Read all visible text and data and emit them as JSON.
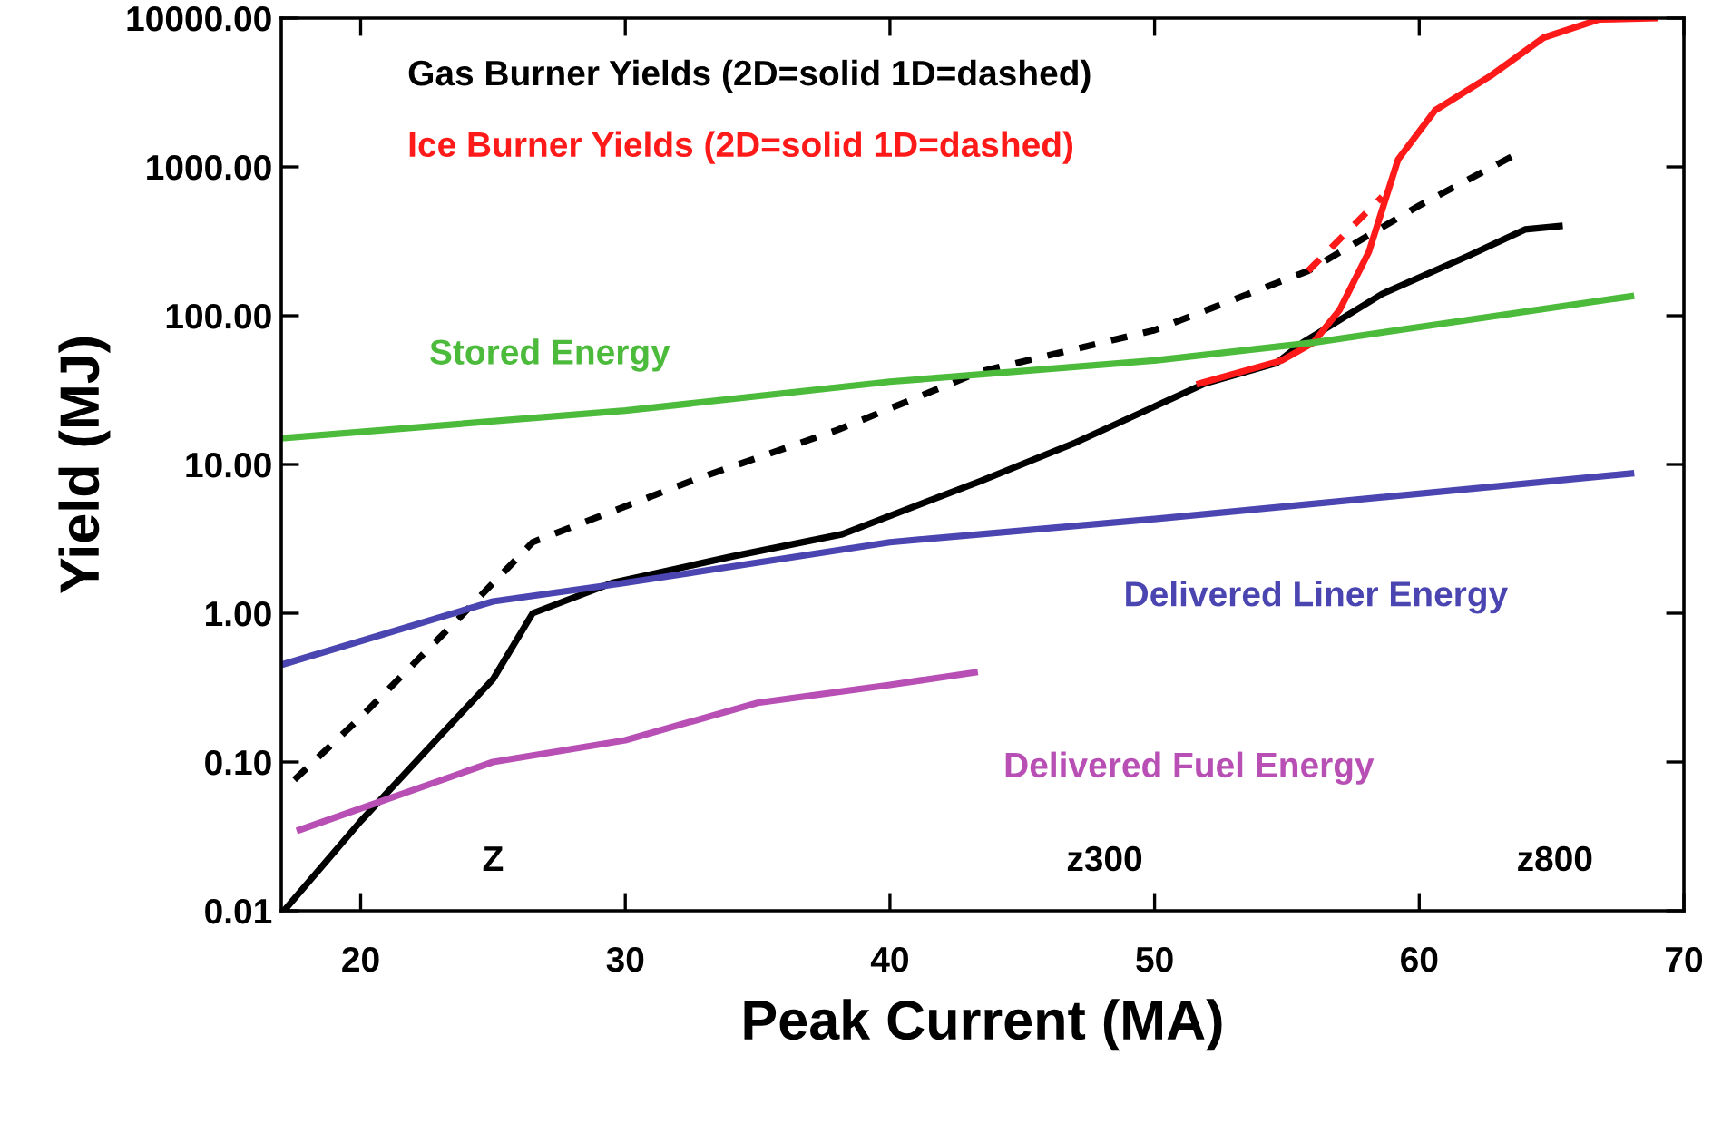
{
  "chart_data": {
    "type": "line",
    "xlabel": "Peak Current (MA)",
    "ylabel": "Yield (MJ)",
    "log": "y",
    "grid": false,
    "legend": false,
    "xlim": [
      17,
      70
    ],
    "xticks": [
      20,
      30,
      40,
      50,
      60,
      70
    ],
    "ylim": [
      0.01,
      10000
    ],
    "yticks": [
      {
        "value": 0.01,
        "label": "0.01"
      },
      {
        "value": 0.1,
        "label": "0.10"
      },
      {
        "value": 1,
        "label": "1.00"
      },
      {
        "value": 10,
        "label": "10.00"
      },
      {
        "value": 100,
        "label": "100.00"
      },
      {
        "value": 1000,
        "label": "1000.00"
      },
      {
        "value": 10000,
        "label": "10000.00"
      }
    ],
    "series": [
      {
        "color": "#000000",
        "line_style": "solid",
        "x": [
          17.1,
          20,
          23,
          25,
          26.5,
          29.5,
          34,
          38.2,
          43.4,
          47,
          51.9,
          54.6,
          55.6,
          58.6,
          61.8,
          64,
          65.3
        ],
        "values": [
          0.01,
          0.04,
          0.15,
          0.36,
          1.0,
          1.6,
          2.4,
          3.4,
          7.7,
          14,
          35,
          48,
          66,
          140,
          250,
          380,
          400
        ]
      },
      {
        "color": "#000000",
        "line_style": "dashed",
        "x": [
          17.5,
          20,
          23.7,
          26.5,
          32.7,
          38,
          43.4,
          50,
          55.8,
          60,
          63.6
        ],
        "values": [
          0.076,
          0.2,
          0.92,
          3.0,
          8,
          17,
          42,
          80,
          200,
          550,
          1200
        ]
      },
      {
        "color": "#ff1a1a",
        "line_style": "solid",
        "x": [
          51.7,
          54.8,
          56.0,
          57.0,
          58.1,
          59.2,
          60.6,
          62.7,
          64.7,
          66.8,
          68.9
        ],
        "values": [
          35,
          50,
          66,
          110,
          270,
          1120,
          2400,
          4100,
          7400,
          9800,
          10000
        ]
      },
      {
        "color": "#ff1a1a",
        "line_style": "dashed",
        "x": [
          55.8,
          58.6
        ],
        "values": [
          200,
          630
        ]
      },
      {
        "name": "Stored Energy",
        "color": "#4cbb3c",
        "line_style": "solid",
        "x": [
          17,
          30,
          40,
          50,
          56,
          68
        ],
        "values": [
          15,
          23,
          36,
          50,
          66,
          135
        ]
      },
      {
        "name": "Delivered Liner Energy",
        "color": "#4a45b0",
        "line_style": "solid",
        "x": [
          17,
          25,
          30,
          40,
          50,
          68
        ],
        "values": [
          0.45,
          1.2,
          1.6,
          3.0,
          4.3,
          8.7
        ]
      },
      {
        "name": "Delivered Fuel Energy",
        "color": "#b84fb4",
        "line_style": "solid",
        "x": [
          17.7,
          25,
          30,
          35,
          40,
          43.2
        ],
        "values": [
          0.035,
          0.1,
          0.14,
          0.25,
          0.33,
          0.4
        ]
      }
    ],
    "annotations": [
      "Gas Burner Yields (2D=solid 1D=dashed)",
      "Ice Burner Yields (2D=solid 1D=dashed)",
      "Z",
      "z300",
      "z800"
    ]
  }
}
